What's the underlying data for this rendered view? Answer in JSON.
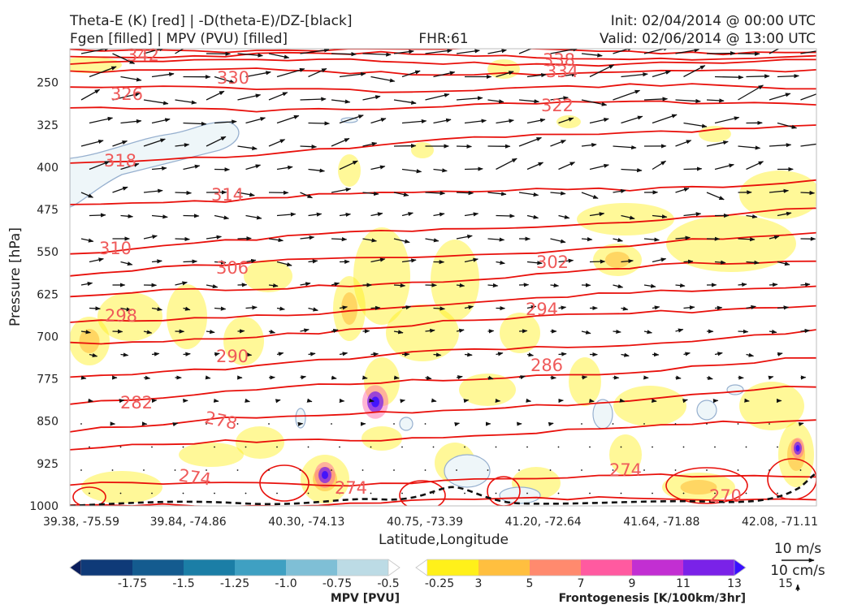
{
  "header": {
    "title_line1": "Theta-E (K) [red] | -D(theta-E)/DZ-[black]",
    "title_line2": "Fgen [filled] | MPV (PVU) [filled]",
    "fhr": "FHR:61",
    "init": "Init: 02/04/2014 @ 00:00 UTC",
    "valid": "Valid: 02/06/2014 @ 13:00 UTC"
  },
  "chart_data": {
    "type": "cross-section",
    "xlabel": "Latitude,Longitude",
    "ylabel": "Pressure [hPa]",
    "x_ticks": [
      "39.38, -75.59",
      "39.84, -74.86",
      "40.30, -74.13",
      "40.75, -73.39",
      "41.20, -72.64",
      "41.64, -71.88",
      "42.08, -71.11"
    ],
    "y_ticks": [
      250,
      325,
      400,
      475,
      550,
      625,
      700,
      775,
      850,
      925,
      1000
    ],
    "ylim": [
      1000,
      190
    ],
    "y_inverted": true,
    "theta_e_contours": [
      {
        "value": 342,
        "label": "342",
        "p_left": 190,
        "p_right": 195
      },
      {
        "value": 338,
        "label": "338",
        "p_left": 200,
        "p_right": 205
      },
      {
        "value": 334,
        "label": "334",
        "p_left": 212,
        "p_right": 216
      },
      {
        "value": 330,
        "label": "330",
        "p_left": 230,
        "p_right": 232
      },
      {
        "value": 326,
        "label": "326",
        "p_left": 262,
        "p_right": 258
      },
      {
        "value": 322,
        "label": "322",
        "p_left": 300,
        "p_right": 283
      },
      {
        "value": 318,
        "label": "318",
        "p_left": 392,
        "p_right": 320
      },
      {
        "value": 314,
        "label": "314",
        "p_left": 465,
        "p_right": 425
      },
      {
        "value": 310,
        "label": "310",
        "p_left": 548,
        "p_right": 475
      },
      {
        "value": 306,
        "label": "306",
        "p_left": 590,
        "p_right": 520
      },
      {
        "value": 302,
        "label": "302",
        "p_left": 632,
        "p_right": 565
      },
      {
        "value": 298,
        "label": "298",
        "p_left": 680,
        "p_right": 608
      },
      {
        "value": 294,
        "label": "294",
        "p_left": 715,
        "p_right": 640
      },
      {
        "value": 290,
        "label": "290",
        "p_left": 770,
        "p_right": 690
      },
      {
        "value": 286,
        "label": "286",
        "p_left": 815,
        "p_right": 740
      },
      {
        "value": 282,
        "label": "282",
        "p_left": 865,
        "p_right": 792
      },
      {
        "value": 278,
        "label": "278",
        "p_left": 900,
        "p_right": 850
      },
      {
        "value": 274,
        "label": "274",
        "p_left": 965,
        "p_right": 945
      },
      {
        "value": 270,
        "label": "270",
        "p_left": 1000,
        "p_right": 985
      }
    ],
    "mpv_colorbar": {
      "label": "MPV [PVU]",
      "ticks": [
        "-1.75",
        "-1.5",
        "-1.25",
        "-1.0",
        "-0.75",
        "-0.5",
        "-0.25"
      ],
      "colors": [
        "#0a1e5c",
        "#0f3a78",
        "#145b8f",
        "#1b7ea6",
        "#3fa0c2",
        "#7fbfd6",
        "#bcdbe5",
        "#ffffff"
      ]
    },
    "fgen_colorbar": {
      "label": "Frontogenesis [K/100km/3hr]",
      "ticks": [
        "3",
        "5",
        "7",
        "9",
        "11",
        "13",
        "15"
      ],
      "colors": [
        "#ffffff",
        "#fff01a",
        "#ffbf3f",
        "#ff8a6e",
        "#ff5aa0",
        "#c22fd2",
        "#7a22e8",
        "#3a10ff"
      ]
    },
    "reference_vectors": {
      "horizontal": "10 m/s",
      "vertical": "10 cm/s"
    }
  }
}
